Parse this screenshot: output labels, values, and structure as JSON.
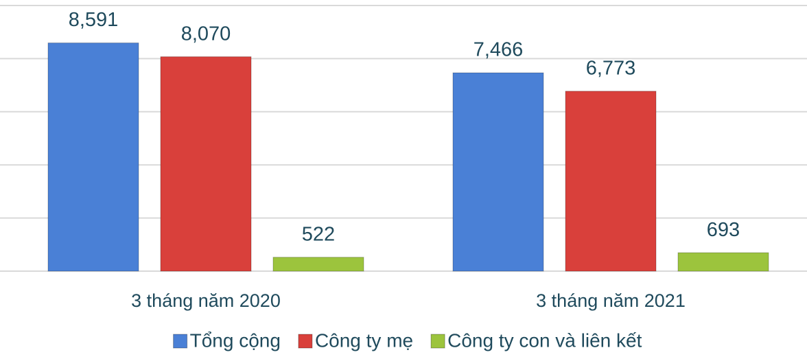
{
  "chart_data": {
    "type": "bar",
    "categories": [
      "3 tháng năm 2020",
      "3 tháng năm 2021"
    ],
    "series": [
      {
        "name": "Tổng cộng",
        "color": "#4a80d6",
        "values": [
          8591,
          7466
        ],
        "value_labels": [
          "8,591",
          "7,466"
        ]
      },
      {
        "name": "Công ty mẹ",
        "color": "#d9403b",
        "values": [
          8070,
          6773
        ],
        "value_labels": [
          "8,070",
          "6,773"
        ]
      },
      {
        "name": "Công ty con và liên kết",
        "color": "#9cc43d",
        "values": [
          522,
          693
        ]
      }
    ],
    "ylim": [
      0,
      10000
    ],
    "yticks": [
      0,
      2000,
      4000,
      6000,
      8000,
      10000
    ],
    "grid": true,
    "legend": "bottom"
  }
}
